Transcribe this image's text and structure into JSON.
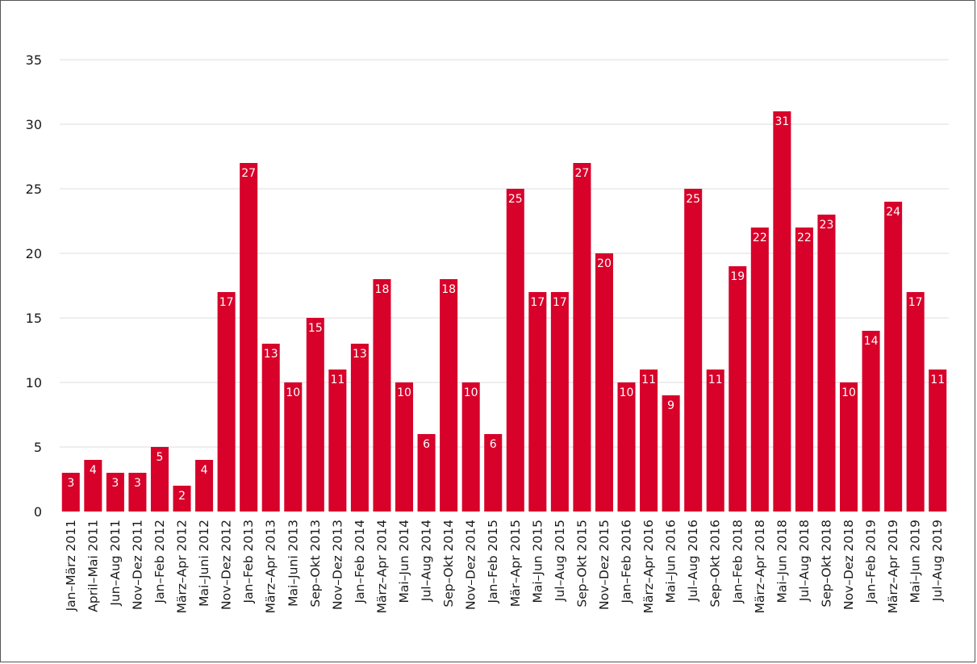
{
  "chart_data": {
    "type": "bar",
    "title": "",
    "xlabel": "",
    "ylabel": "",
    "ylim": [
      0,
      35
    ],
    "yticks": [
      0,
      5,
      10,
      15,
      20,
      25,
      30,
      35
    ],
    "grid": true,
    "bar_color": "#d7012a",
    "data_label_color": "#ffffff",
    "categories": [
      "Jan–März 2011",
      "April–Mai 2011",
      "Jun–Aug 2011",
      "Nov–Dez 2011",
      "Jan–Feb 2012",
      "März–Apr 2012",
      "Mai–Juni 2012",
      "Nov–Dez 2012",
      "Jan–Feb 2013",
      "März–Apr 2013",
      "Mai–Juni 2013",
      "Sep–Okt 2013",
      "Nov–Dez 2013",
      "Jan–Feb 2014",
      "März–Apr 2014",
      "Mai–Jun 2014",
      "Jul–Aug 2014",
      "Sep–Okt 2014",
      "Nov–Dez 2014",
      "Jan–Feb 2015",
      "Mär–Apr 2015",
      "Mai–Jun 2015",
      "Jul–Aug 2015",
      "Sep–Okt 2015",
      "Nov–Dez 2015",
      "Jan–Feb 2016",
      "März–Apr 2016",
      "Mai–Jun 2016",
      "Jul–Aug 2016",
      "Sep–Okt 2016",
      "Jan–Feb 2018",
      "März–Apr 2018",
      "Mai–Jun 2018",
      "Jul–Aug 2018",
      "Sep–Okt 2018",
      "Nov–Dez 2018",
      "Jan–Feb 2019",
      "März–Apr 2019",
      "Mai–Jun 2019",
      "Jul–Aug 2019"
    ],
    "values": [
      3,
      4,
      3,
      3,
      5,
      2,
      4,
      17,
      27,
      13,
      10,
      15,
      11,
      13,
      18,
      10,
      6,
      18,
      10,
      6,
      25,
      17,
      17,
      27,
      20,
      10,
      11,
      9,
      25,
      11,
      19,
      22,
      31,
      22,
      23,
      10,
      14,
      24,
      17,
      11
    ]
  }
}
